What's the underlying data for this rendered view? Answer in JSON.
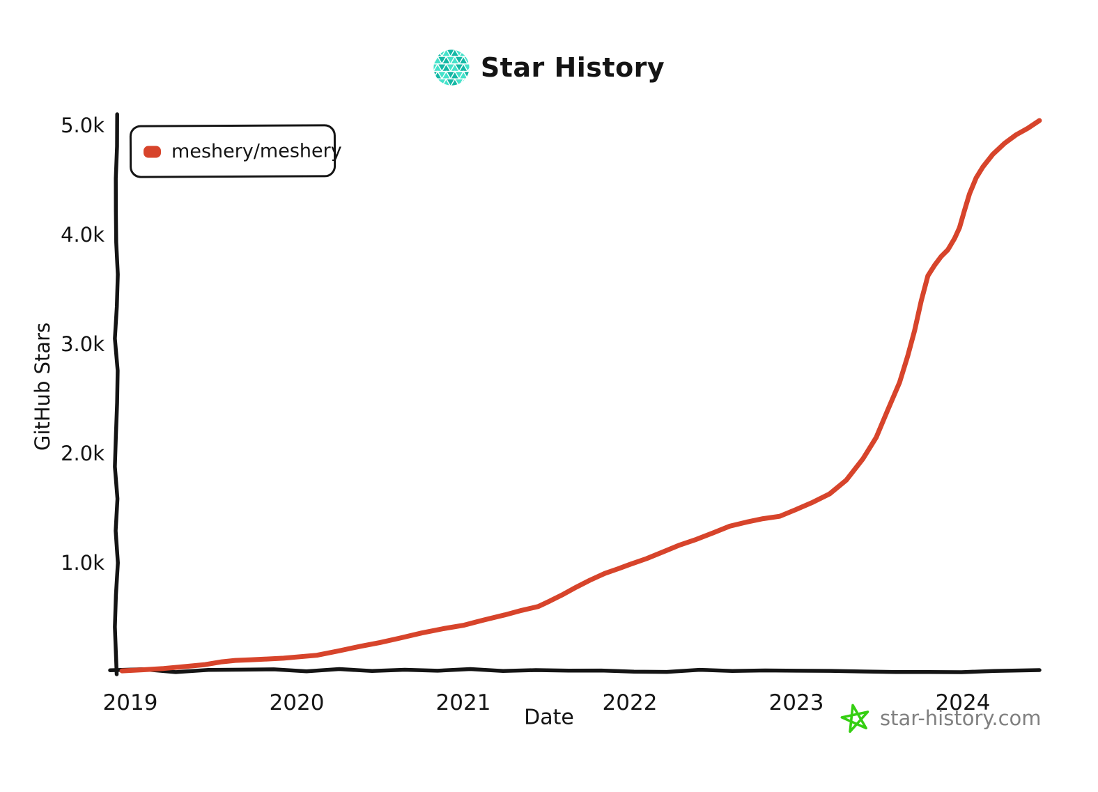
{
  "header": {
    "title": "Star History",
    "logo_icon": "star-history-logo"
  },
  "legend": {
    "items": [
      {
        "label": "meshery/meshery",
        "color": "#d7442b"
      }
    ]
  },
  "axes": {
    "ylabel": "GitHub Stars",
    "xlabel": "Date"
  },
  "footer": {
    "site": "star-history.com",
    "star_icon_color": "#35cf12",
    "text_color": "#808080"
  },
  "colors": {
    "line_red": "#d7442b",
    "axis_black": "#141414",
    "logo_teal_dark": "#14b8a5",
    "logo_teal_light": "#45e2ca"
  },
  "chart_data": {
    "type": "line",
    "title": "Star History",
    "xlabel": "Date",
    "ylabel": "GitHub Stars",
    "xlim": [
      2018.9,
      2024.55
    ],
    "ylim": [
      0,
      5100
    ],
    "grid": false,
    "legend_position": "top-left",
    "x_tick_labels": [
      "2019",
      "2020",
      "2021",
      "2022",
      "2023",
      "2024"
    ],
    "y_tick_labels": [
      "5.0k",
      "4.0k",
      "3.0k",
      "2.0k",
      "1.0k"
    ],
    "y_tick_values": [
      5000,
      4000,
      3000,
      2000,
      1000
    ],
    "series": [
      {
        "name": "meshery/meshery",
        "color": "#d7442b",
        "points": [
          [
            2018.95,
            5
          ],
          [
            2019.08,
            20
          ],
          [
            2019.2,
            38
          ],
          [
            2019.33,
            55
          ],
          [
            2019.45,
            75
          ],
          [
            2019.55,
            95
          ],
          [
            2019.63,
            108
          ],
          [
            2019.72,
            112
          ],
          [
            2019.82,
            116
          ],
          [
            2019.92,
            124
          ],
          [
            2020.0,
            132
          ],
          [
            2020.12,
            158
          ],
          [
            2020.25,
            192
          ],
          [
            2020.38,
            235
          ],
          [
            2020.5,
            275
          ],
          [
            2020.62,
            318
          ],
          [
            2020.75,
            358
          ],
          [
            2020.88,
            398
          ],
          [
            2021.0,
            432
          ],
          [
            2021.12,
            480
          ],
          [
            2021.25,
            528
          ],
          [
            2021.35,
            562
          ],
          [
            2021.45,
            598
          ],
          [
            2021.52,
            645
          ],
          [
            2021.6,
            718
          ],
          [
            2021.68,
            778
          ],
          [
            2021.76,
            842
          ],
          [
            2021.85,
            898
          ],
          [
            2021.93,
            945
          ],
          [
            2022.0,
            985
          ],
          [
            2022.1,
            1042
          ],
          [
            2022.2,
            1098
          ],
          [
            2022.3,
            1160
          ],
          [
            2022.4,
            1218
          ],
          [
            2022.5,
            1272
          ],
          [
            2022.6,
            1330
          ],
          [
            2022.7,
            1365
          ],
          [
            2022.8,
            1398
          ],
          [
            2022.9,
            1428
          ],
          [
            2023.0,
            1490
          ],
          [
            2023.1,
            1548
          ],
          [
            2023.2,
            1635
          ],
          [
            2023.3,
            1760
          ],
          [
            2023.4,
            1950
          ],
          [
            2023.48,
            2150
          ],
          [
            2023.55,
            2400
          ],
          [
            2023.62,
            2650
          ],
          [
            2023.67,
            2900
          ],
          [
            2023.71,
            3120
          ],
          [
            2023.75,
            3400
          ],
          [
            2023.79,
            3620
          ],
          [
            2023.83,
            3720
          ],
          [
            2023.87,
            3800
          ],
          [
            2023.91,
            3860
          ],
          [
            2023.95,
            3960
          ],
          [
            2023.98,
            4070
          ],
          [
            2024.01,
            4220
          ],
          [
            2024.04,
            4380
          ],
          [
            2024.08,
            4520
          ],
          [
            2024.12,
            4620
          ],
          [
            2024.18,
            4740
          ],
          [
            2024.25,
            4840
          ],
          [
            2024.32,
            4915
          ],
          [
            2024.39,
            4975
          ],
          [
            2024.46,
            5040
          ]
        ]
      }
    ]
  }
}
